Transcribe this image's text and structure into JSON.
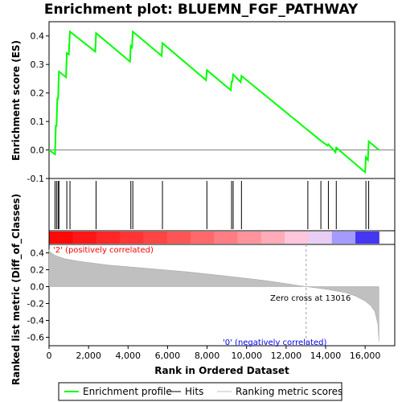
{
  "chart_data": {
    "type": "line",
    "title": "Enrichment plot: BLUEMN_FGF_PATHWAY",
    "top_panel": {
      "ylabel": "Enrichment score (ES)",
      "ylim": [
        -0.1,
        0.45
      ],
      "yticks": [
        "-0.1",
        "0.0",
        "0.1",
        "0.2",
        "0.3",
        "0.4"
      ],
      "ytick_values": [
        -0.1,
        0.0,
        0.1,
        0.2,
        0.3,
        0.4
      ],
      "series": [
        {
          "name": "Enrichment profile",
          "color": "#00ff00",
          "x": [
            0,
            300,
            340,
            380,
            420,
            460,
            500,
            860,
            900,
            1000,
            1060,
            2340,
            2380,
            4100,
            4140,
            4200,
            4240,
            5700,
            5740,
            7950,
            7990,
            9200,
            9240,
            9280,
            9320,
            9700,
            9740,
            13800,
            13840,
            14100,
            14140,
            14500,
            14540,
            16000,
            16040,
            16140,
            16180,
            16700
          ],
          "y": [
            0.0,
            -0.015,
            0.085,
            0.085,
            0.18,
            0.18,
            0.275,
            0.255,
            0.34,
            0.335,
            0.415,
            0.345,
            0.41,
            0.31,
            0.365,
            0.36,
            0.415,
            0.33,
            0.375,
            0.245,
            0.28,
            0.21,
            0.24,
            0.24,
            0.265,
            0.238,
            0.26,
            0.03,
            0.028,
            0.015,
            0.02,
            -0.008,
            0.008,
            -0.078,
            -0.025,
            -0.035,
            0.03,
            0.0
          ]
        }
      ]
    },
    "hits": {
      "name": "Hits",
      "positions": [
        300,
        380,
        460,
        500,
        900,
        1060,
        2380,
        4140,
        4240,
        5740,
        7990,
        9240,
        9320,
        9740,
        13100,
        13760,
        14140,
        14540,
        16040,
        16180
      ]
    },
    "bottom_panel": {
      "ylabel": "Ranked list metric (Diff_of_Classes)",
      "xlabel": "Rank in Ordered Dataset",
      "ylim": [
        -0.7,
        0.5
      ],
      "yticks": [
        "-0.6",
        "-0.4",
        "-0.2",
        "0.0",
        "0.2",
        "0.4"
      ],
      "ytick_values": [
        -0.6,
        -0.4,
        -0.2,
        0.0,
        0.2,
        0.4
      ],
      "xlim": [
        0,
        17500
      ],
      "xticks": [
        "0",
        "2,000",
        "4,000",
        "6,000",
        "8,000",
        "10,000",
        "12,000",
        "14,000",
        "16,000"
      ],
      "xtick_values": [
        0,
        2000,
        4000,
        6000,
        8000,
        10000,
        12000,
        14000,
        16000
      ],
      "metric_x": [
        0,
        50,
        300,
        800,
        1500,
        3000,
        5000,
        7000,
        9000,
        11000,
        13016,
        14000,
        15000,
        15500,
        16000,
        16300,
        16500,
        16650,
        16700
      ],
      "metric_y": [
        0.44,
        0.41,
        0.37,
        0.33,
        0.3,
        0.255,
        0.215,
        0.175,
        0.125,
        0.07,
        0.0,
        -0.03,
        -0.07,
        -0.11,
        -0.17,
        -0.23,
        -0.3,
        -0.45,
        -0.65
      ],
      "zero_cross_label": "Zero cross at 13016",
      "zero_cross": 13016,
      "positive_label": "'2' (positively correlated)",
      "negative_label": "'0' (negatively correlated)"
    },
    "legend": {
      "placement": "bottom",
      "items": [
        "Enrichment profile",
        "Hits",
        "Ranking metric scores"
      ]
    }
  }
}
